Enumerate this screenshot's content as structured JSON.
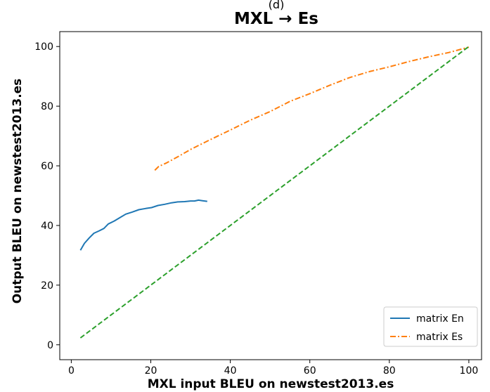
{
  "chart_data": {
    "type": "line",
    "subtitle": "(d)",
    "title": "MXL → Es",
    "xlabel": "MXL input BLEU on newstest2013.es",
    "ylabel": "Output BLEU on newstest2013.es",
    "xlim": [
      -2.9,
      103.2
    ],
    "ylim": [
      -5,
      105
    ],
    "xticks": [
      0,
      20,
      40,
      60,
      80,
      100
    ],
    "yticks": [
      0,
      20,
      40,
      60,
      80,
      100
    ],
    "legend_position": "bottom-right",
    "grid": false,
    "series": [
      {
        "name": "matrix En",
        "color": "#1f77b4",
        "style": "solid",
        "points": [
          [
            2.3,
            31.7
          ],
          [
            3.3,
            34.0
          ],
          [
            4.5,
            35.8
          ],
          [
            5.7,
            37.4
          ],
          [
            7.0,
            38.2
          ],
          [
            8.2,
            39.0
          ],
          [
            9.3,
            40.5
          ],
          [
            10.8,
            41.5
          ],
          [
            12.2,
            42.6
          ],
          [
            13.7,
            43.8
          ],
          [
            15.3,
            44.5
          ],
          [
            17.0,
            45.3
          ],
          [
            18.7,
            45.7
          ],
          [
            20.2,
            46.0
          ],
          [
            21.8,
            46.7
          ],
          [
            23.5,
            47.1
          ],
          [
            25.2,
            47.6
          ],
          [
            26.8,
            47.9
          ],
          [
            28.5,
            48.0
          ],
          [
            30.0,
            48.2
          ],
          [
            31.0,
            48.2
          ],
          [
            32.0,
            48.5
          ],
          [
            33.0,
            48.3
          ],
          [
            34.2,
            48.1
          ]
        ]
      },
      {
        "name": "matrix Es",
        "color": "#ff7f0e",
        "style": "dashdot",
        "points": [
          [
            21.0,
            58.5
          ],
          [
            22.0,
            59.8
          ],
          [
            24.0,
            61.0
          ],
          [
            27.0,
            63.2
          ],
          [
            30.0,
            65.5
          ],
          [
            35.0,
            68.8
          ],
          [
            40.0,
            72.0
          ],
          [
            45.0,
            75.3
          ],
          [
            50.0,
            78.2
          ],
          [
            55.0,
            81.6
          ],
          [
            60.0,
            84.2
          ],
          [
            65.0,
            87.0
          ],
          [
            70.0,
            89.6
          ],
          [
            75.0,
            91.6
          ],
          [
            80.0,
            93.2
          ],
          [
            85.0,
            95.0
          ],
          [
            90.0,
            96.6
          ],
          [
            95.0,
            98.0
          ],
          [
            100.0,
            99.8
          ]
        ]
      },
      {
        "name": "",
        "color": "#2ca02c",
        "style": "dashed",
        "points": [
          [
            2.3,
            2.3
          ],
          [
            100.0,
            100.0
          ]
        ]
      }
    ]
  }
}
